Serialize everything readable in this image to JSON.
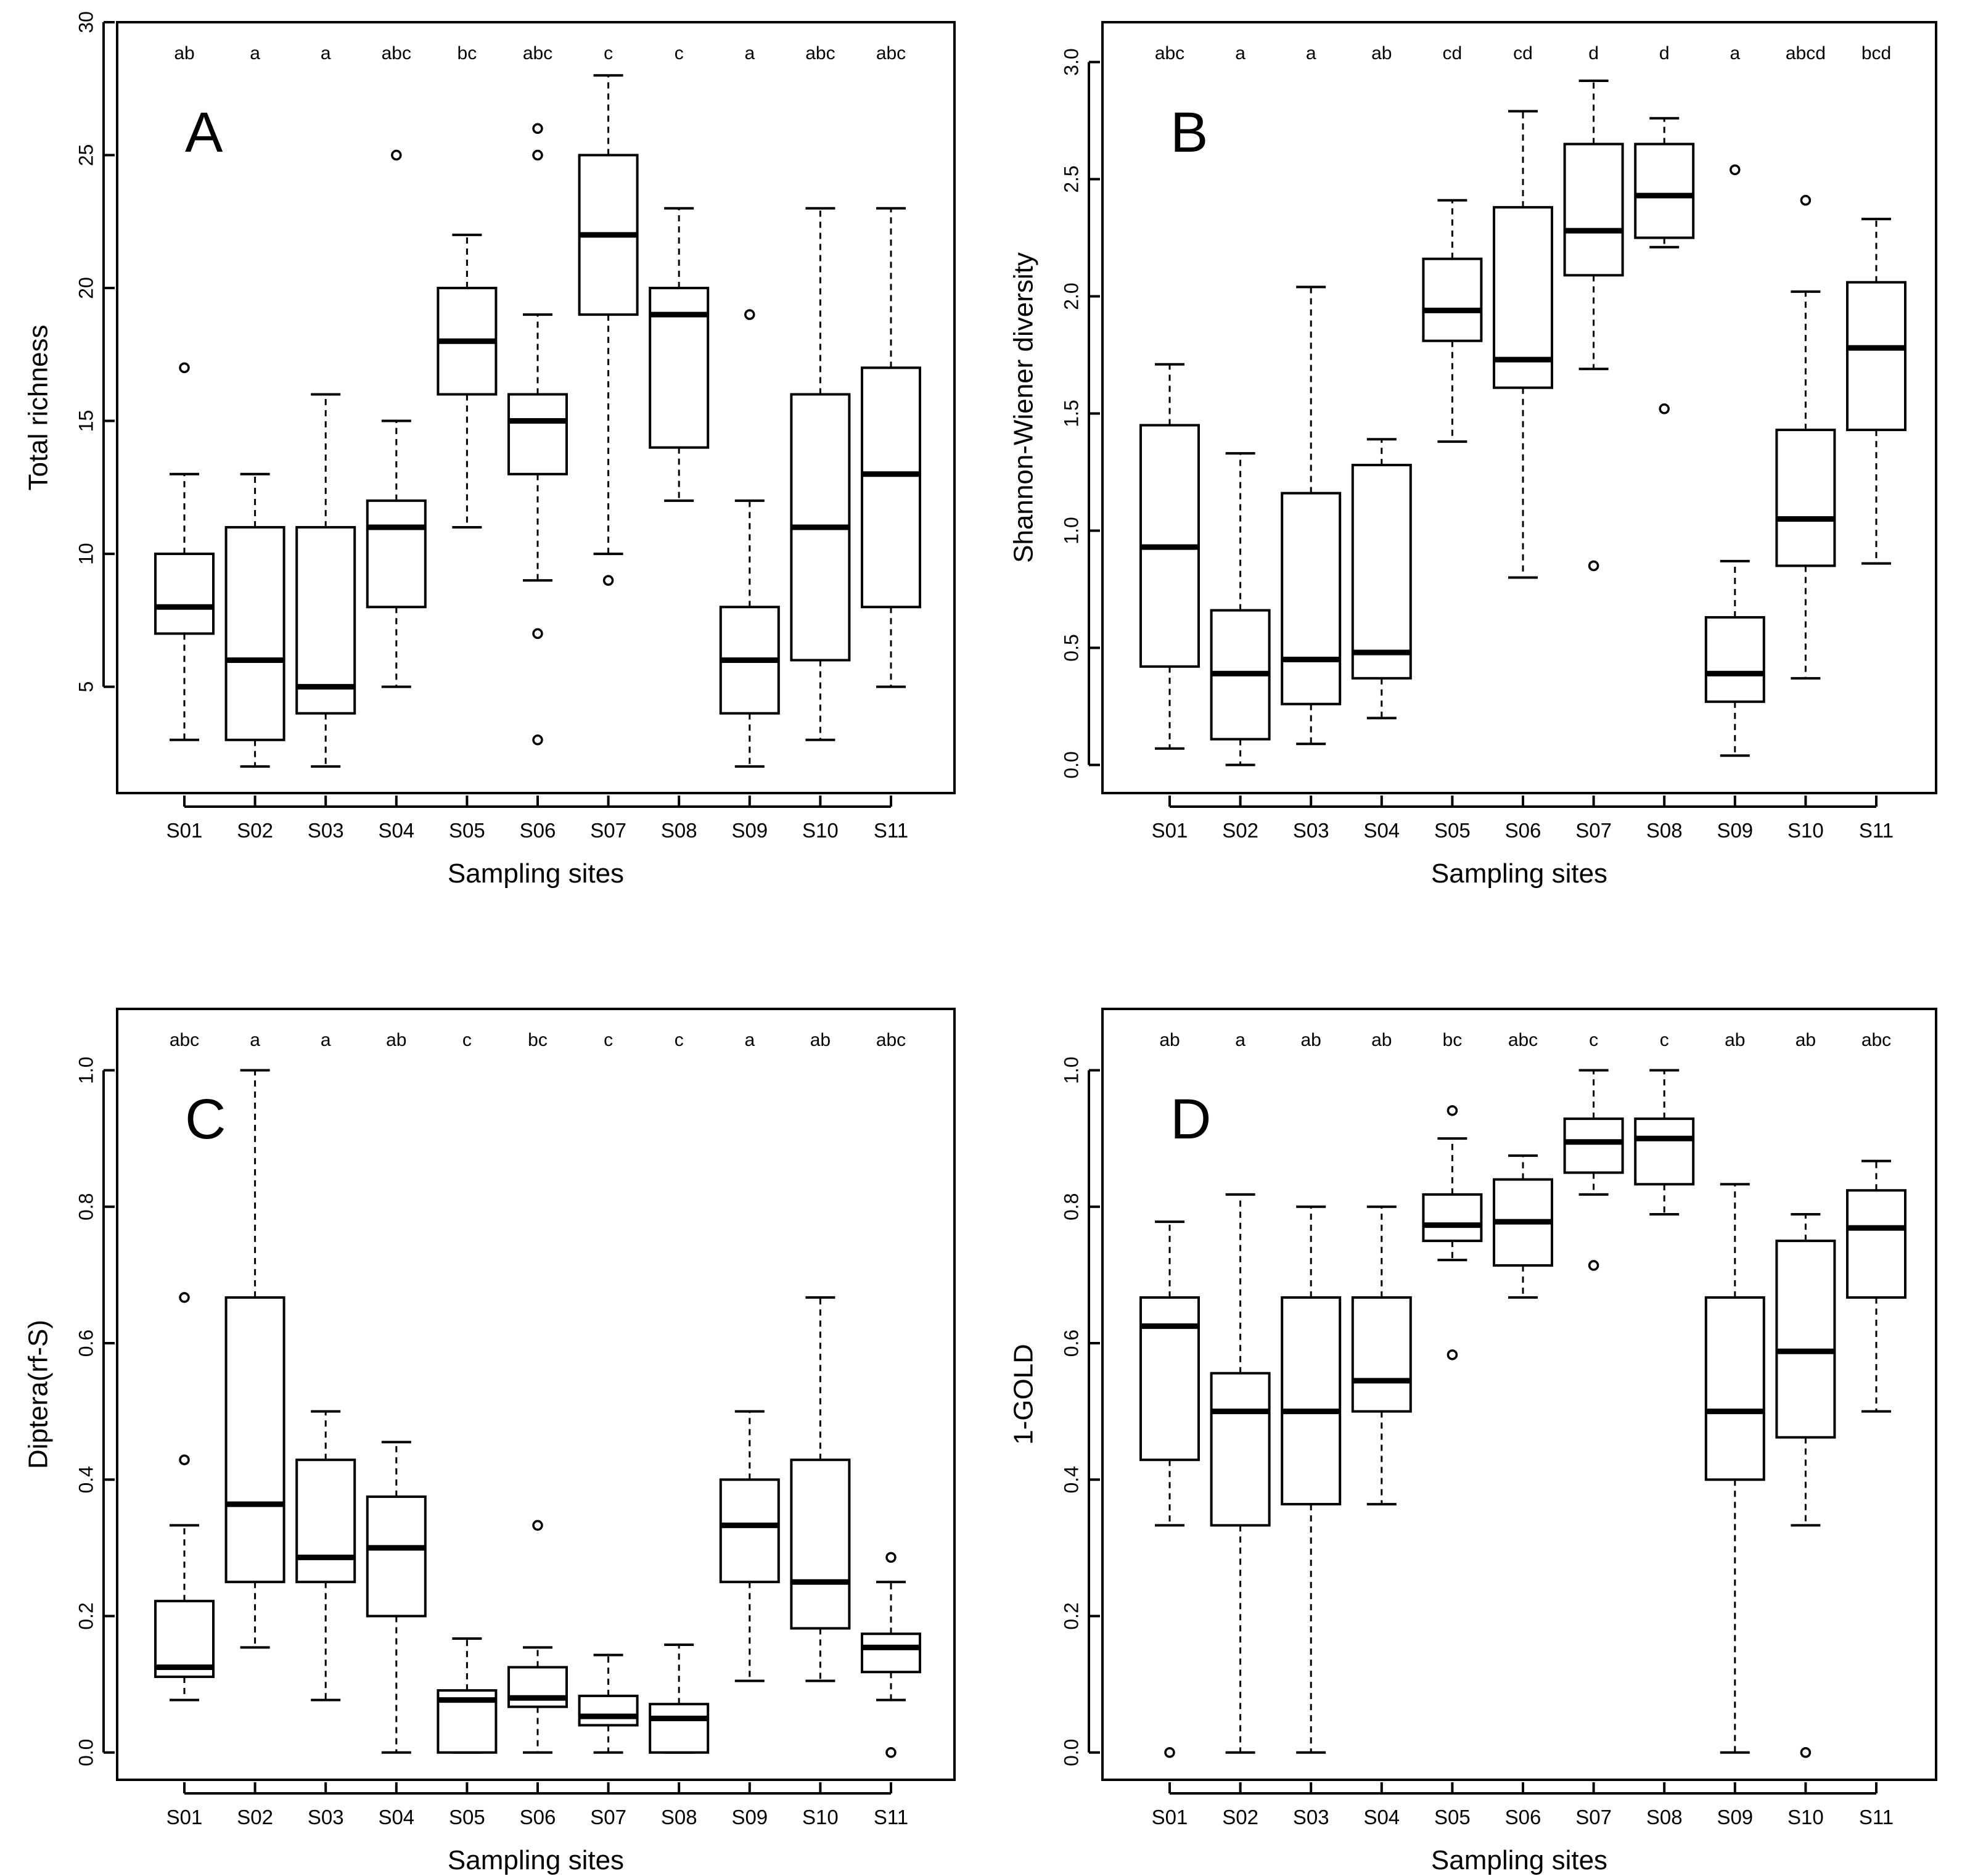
{
  "chart_data": [
    {
      "type": "boxplot",
      "panel_label": "A",
      "xlabel": "Sampling sites",
      "ylabel": "Total richness",
      "ylim": [
        1,
        30
      ],
      "yticks": [
        5,
        10,
        15,
        20,
        25,
        30
      ],
      "ytick_labels": [
        "5",
        "10",
        "15",
        "20",
        "25",
        "30"
      ],
      "categories": [
        "S01",
        "S02",
        "S03",
        "S04",
        "S05",
        "S06",
        "S07",
        "S08",
        "S09",
        "S10",
        "S11"
      ],
      "group_letters": [
        "ab",
        "a",
        "a",
        "abc",
        "bc",
        "abc",
        "c",
        "c",
        "a",
        "abc",
        "abc"
      ],
      "boxes": [
        {
          "min": 3,
          "q1": 7,
          "median": 8,
          "q3": 10,
          "max": 13,
          "outliers": [
            17
          ]
        },
        {
          "min": 2,
          "q1": 3,
          "median": 6,
          "q3": 11,
          "max": 13,
          "outliers": []
        },
        {
          "min": 2,
          "q1": 4,
          "median": 5,
          "q3": 11,
          "max": 16,
          "outliers": []
        },
        {
          "min": 5,
          "q1": 8,
          "median": 11,
          "q3": 12,
          "max": 15,
          "outliers": [
            25
          ]
        },
        {
          "min": 11,
          "q1": 16,
          "median": 18,
          "q3": 20,
          "max": 22,
          "outliers": []
        },
        {
          "min": 9,
          "q1": 13,
          "median": 15,
          "q3": 16,
          "max": 19,
          "outliers": [
            3,
            7,
            25,
            26
          ]
        },
        {
          "min": 10,
          "q1": 19,
          "median": 22,
          "q3": 25,
          "max": 28,
          "outliers": [
            9
          ]
        },
        {
          "min": 12,
          "q1": 14,
          "median": 19,
          "q3": 20,
          "max": 23,
          "outliers": []
        },
        {
          "min": 2,
          "q1": 4,
          "median": 6,
          "q3": 8,
          "max": 12,
          "outliers": [
            19
          ]
        },
        {
          "min": 3,
          "q1": 6,
          "median": 11,
          "q3": 16,
          "max": 23,
          "outliers": []
        },
        {
          "min": 5,
          "q1": 8,
          "median": 13,
          "q3": 17,
          "max": 23,
          "outliers": []
        }
      ]
    },
    {
      "type": "boxplot",
      "panel_label": "B",
      "xlabel": "Sampling sites",
      "ylabel": "Shannon-Wiener diversity",
      "ylim": [
        -0.12,
        3.17
      ],
      "yticks": [
        0,
        0.5,
        1,
        1.5,
        2,
        2.5,
        3
      ],
      "ytick_labels": [
        "0.0",
        "0.5",
        "1.0",
        "1.5",
        "2.0",
        "2.5",
        "3.0"
      ],
      "categories": [
        "S01",
        "S02",
        "S03",
        "S04",
        "S05",
        "S06",
        "S07",
        "S08",
        "S09",
        "S10",
        "S11"
      ],
      "group_letters": [
        "abc",
        "a",
        "a",
        "ab",
        "cd",
        "cd",
        "d",
        "d",
        "a",
        "abcd",
        "bcd"
      ],
      "boxes": [
        {
          "min": 0.07,
          "q1": 0.42,
          "median": 0.93,
          "q3": 1.45,
          "max": 1.71,
          "outliers": []
        },
        {
          "min": 0.0,
          "q1": 0.11,
          "median": 0.39,
          "q3": 0.66,
          "max": 1.33,
          "outliers": []
        },
        {
          "min": 0.09,
          "q1": 0.26,
          "median": 0.45,
          "q3": 1.16,
          "max": 2.04,
          "outliers": []
        },
        {
          "min": 0.2,
          "q1": 0.37,
          "median": 0.48,
          "q3": 1.28,
          "max": 1.39,
          "outliers": []
        },
        {
          "min": 1.38,
          "q1": 1.81,
          "median": 1.94,
          "q3": 2.16,
          "max": 2.41,
          "outliers": []
        },
        {
          "min": 0.8,
          "q1": 1.61,
          "median": 1.73,
          "q3": 2.38,
          "max": 2.79,
          "outliers": []
        },
        {
          "min": 1.69,
          "q1": 2.09,
          "median": 2.28,
          "q3": 2.65,
          "max": 2.92,
          "outliers": [
            0.85
          ]
        },
        {
          "min": 2.21,
          "q1": 2.25,
          "median": 2.43,
          "q3": 2.65,
          "max": 2.76,
          "outliers": [
            1.52
          ]
        },
        {
          "min": 0.04,
          "q1": 0.27,
          "median": 0.39,
          "q3": 0.63,
          "max": 0.87,
          "outliers": [
            2.54
          ]
        },
        {
          "min": 0.37,
          "q1": 0.85,
          "median": 1.05,
          "q3": 1.43,
          "max": 2.02,
          "outliers": [
            2.41
          ]
        },
        {
          "min": 0.86,
          "q1": 1.43,
          "median": 1.78,
          "q3": 2.06,
          "max": 2.33,
          "outliers": []
        }
      ]
    },
    {
      "type": "boxplot",
      "panel_label": "C",
      "xlabel": "Sampling sites",
      "ylabel": "Diptera(rf-S)",
      "ylim": [
        -0.04,
        1.09
      ],
      "yticks": [
        0,
        0.2,
        0.4,
        0.6,
        0.8,
        1
      ],
      "ytick_labels": [
        "0.0",
        "0.2",
        "0.4",
        "0.6",
        "0.8",
        "1.0"
      ],
      "categories": [
        "S01",
        "S02",
        "S03",
        "S04",
        "S05",
        "S06",
        "S07",
        "S08",
        "S09",
        "S10",
        "S11"
      ],
      "group_letters": [
        "abc",
        "a",
        "a",
        "ab",
        "c",
        "bc",
        "c",
        "c",
        "a",
        "ab",
        "abc"
      ],
      "boxes": [
        {
          "min": 0.077,
          "q1": 0.111,
          "median": 0.125,
          "q3": 0.222,
          "max": 0.333,
          "outliers": [
            0.429,
            0.667
          ]
        },
        {
          "min": 0.154,
          "q1": 0.25,
          "median": 0.364,
          "q3": 0.667,
          "max": 1.0,
          "outliers": []
        },
        {
          "min": 0.077,
          "q1": 0.25,
          "median": 0.286,
          "q3": 0.429,
          "max": 0.5,
          "outliers": []
        },
        {
          "min": 0.0,
          "q1": 0.2,
          "median": 0.3,
          "q3": 0.375,
          "max": 0.455,
          "outliers": []
        },
        {
          "min": 0.0,
          "q1": 0.0,
          "median": 0.077,
          "q3": 0.091,
          "max": 0.167,
          "outliers": []
        },
        {
          "min": 0.0,
          "q1": 0.067,
          "median": 0.08,
          "q3": 0.125,
          "max": 0.154,
          "outliers": [
            0.333
          ]
        },
        {
          "min": 0.0,
          "q1": 0.04,
          "median": 0.053,
          "q3": 0.083,
          "max": 0.143,
          "outliers": []
        },
        {
          "min": 0.0,
          "q1": 0.0,
          "median": 0.05,
          "q3": 0.071,
          "max": 0.158,
          "outliers": []
        },
        {
          "min": 0.105,
          "q1": 0.25,
          "median": 0.333,
          "q3": 0.4,
          "max": 0.5,
          "outliers": []
        },
        {
          "min": 0.105,
          "q1": 0.182,
          "median": 0.25,
          "q3": 0.429,
          "max": 0.667,
          "outliers": []
        },
        {
          "min": 0.077,
          "q1": 0.118,
          "median": 0.154,
          "q3": 0.174,
          "max": 0.25,
          "outliers": [
            0.0,
            0.286
          ]
        }
      ]
    },
    {
      "type": "boxplot",
      "panel_label": "D",
      "xlabel": "Sampling sites",
      "ylabel": "1-GOLD",
      "ylim": [
        -0.04,
        1.09
      ],
      "yticks": [
        0,
        0.2,
        0.4,
        0.6,
        0.8,
        1
      ],
      "ytick_labels": [
        "0.0",
        "0.2",
        "0.4",
        "0.6",
        "0.8",
        "1.0"
      ],
      "categories": [
        "S01",
        "S02",
        "S03",
        "S04",
        "S05",
        "S06",
        "S07",
        "S08",
        "S09",
        "S10",
        "S11"
      ],
      "group_letters": [
        "ab",
        "a",
        "ab",
        "ab",
        "bc",
        "abc",
        "c",
        "c",
        "ab",
        "ab",
        "abc"
      ],
      "boxes": [
        {
          "min": 0.333,
          "q1": 0.429,
          "median": 0.625,
          "q3": 0.667,
          "max": 0.778,
          "outliers": [
            0.0
          ]
        },
        {
          "min": 0.0,
          "q1": 0.333,
          "median": 0.5,
          "q3": 0.556,
          "max": 0.818,
          "outliers": []
        },
        {
          "min": 0.0,
          "q1": 0.364,
          "median": 0.5,
          "q3": 0.667,
          "max": 0.8,
          "outliers": []
        },
        {
          "min": 0.364,
          "q1": 0.5,
          "median": 0.545,
          "q3": 0.667,
          "max": 0.8,
          "outliers": []
        },
        {
          "min": 0.722,
          "q1": 0.75,
          "median": 0.773,
          "q3": 0.818,
          "max": 0.9,
          "outliers": [
            0.583,
            0.941
          ]
        },
        {
          "min": 0.667,
          "q1": 0.714,
          "median": 0.778,
          "q3": 0.84,
          "max": 0.875,
          "outliers": []
        },
        {
          "min": 0.818,
          "q1": 0.85,
          "median": 0.895,
          "q3": 0.929,
          "max": 1.0,
          "outliers": [
            0.714
          ]
        },
        {
          "min": 0.789,
          "q1": 0.833,
          "median": 0.9,
          "q3": 0.929,
          "max": 1.0,
          "outliers": []
        },
        {
          "min": 0.0,
          "q1": 0.4,
          "median": 0.5,
          "q3": 0.667,
          "max": 0.833,
          "outliers": []
        },
        {
          "min": 0.333,
          "q1": 0.462,
          "median": 0.588,
          "q3": 0.75,
          "max": 0.789,
          "outliers": [
            0.0
          ]
        },
        {
          "min": 0.5,
          "q1": 0.667,
          "median": 0.769,
          "q3": 0.824,
          "max": 0.867,
          "outliers": []
        }
      ]
    }
  ]
}
